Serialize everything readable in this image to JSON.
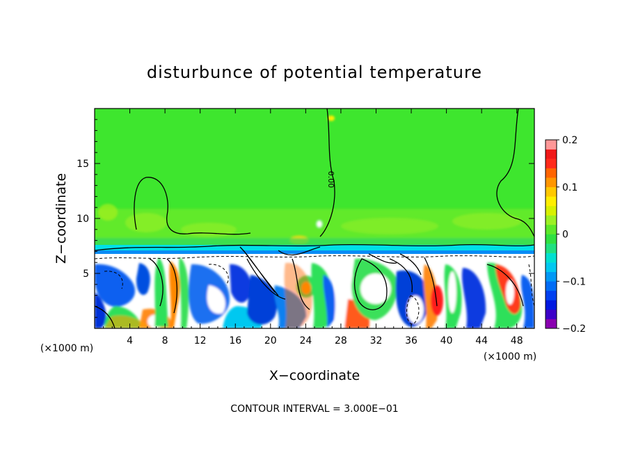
{
  "chart_data": {
    "type": "heatmap",
    "title": "disturbunce of potential temperature",
    "xlabel": "X−coordinate",
    "ylabel": "Z−coordinate",
    "x_unit_left": "(×1000 m)",
    "x_unit_right": "(×1000 m)",
    "footer": "CONTOUR INTERVAL = 3.000E−01",
    "xlim": [
      0,
      50
    ],
    "ylim": [
      0,
      20
    ],
    "x_ticks": [
      4,
      8,
      12,
      16,
      20,
      24,
      28,
      32,
      36,
      40,
      44,
      48
    ],
    "y_ticks": [
      5,
      10,
      15
    ],
    "zero_contour_label": "0.00",
    "colorbar": {
      "range": [
        -0.2,
        0.2
      ],
      "ticks": [
        "0.2",
        "0.1",
        "0",
        "−0.1",
        "−0.2"
      ]
    },
    "regions": {
      "upper_layer_value": 0,
      "inversion_height": 7,
      "lower_layer": "mixed positive and negative disturbances between -0.2 and 0.2"
    }
  }
}
